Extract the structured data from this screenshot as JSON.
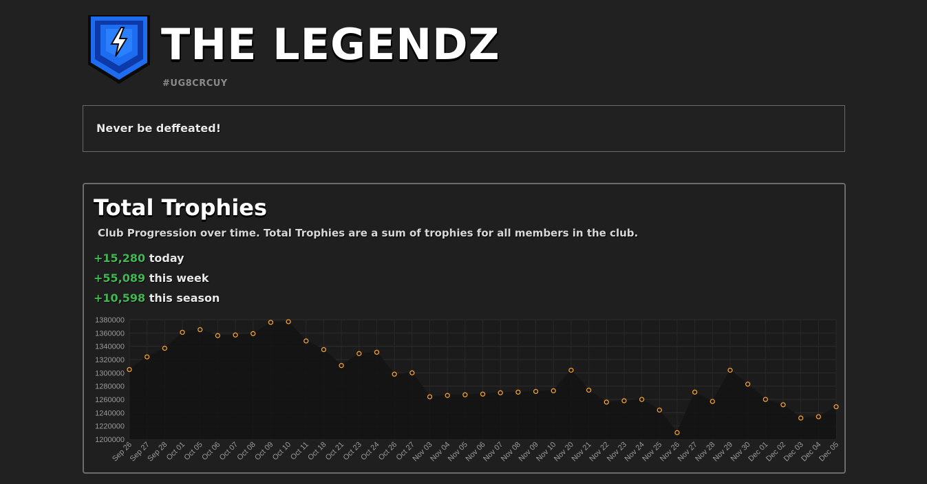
{
  "club": {
    "name": "THE LEGENDZ",
    "tag": "#UG8CRCUY",
    "description": "Never be deffeated!"
  },
  "trophies": {
    "title": "Total Trophies",
    "subtitle": "Club Progression over time. Total Trophies are a sum of trophies for all members in the club.",
    "stats": [
      {
        "value": "+15,280",
        "label": "today"
      },
      {
        "value": "+55,089",
        "label": "this week"
      },
      {
        "value": "+10,598",
        "label": "this season"
      }
    ]
  },
  "colors": {
    "accent_green": "#3fb950",
    "point": "#f0a030",
    "logo_blue": "#1e6cf0"
  },
  "chart_data": {
    "type": "line",
    "title": "",
    "xlabel": "",
    "ylabel": "",
    "ylim": [
      1200000,
      1380000
    ],
    "yticks": [
      1200000,
      1220000,
      1240000,
      1260000,
      1280000,
      1300000,
      1320000,
      1340000,
      1360000,
      1380000
    ],
    "grid": true,
    "legend": "none",
    "categories": [
      "Sep 26",
      "Sep 27",
      "Sep 28",
      "Oct 01",
      "Oct 05",
      "Oct 06",
      "Oct 07",
      "Oct 08",
      "Oct 09",
      "Oct 10",
      "Oct 11",
      "Oct 18",
      "Oct 21",
      "Oct 23",
      "Oct 24",
      "Oct 26",
      "Oct 27",
      "Nov 03",
      "Nov 04",
      "Nov 05",
      "Nov 06",
      "Nov 07",
      "Nov 08",
      "Nov 09",
      "Nov 10",
      "Nov 20",
      "Nov 21",
      "Nov 22",
      "Nov 23",
      "Nov 24",
      "Nov 25",
      "Nov 26",
      "Nov 27",
      "Nov 28",
      "Nov 29",
      "Nov 30",
      "Dec 01",
      "Dec 02",
      "Dec 03",
      "Dec 04",
      "Dec 05"
    ],
    "values": [
      1305000,
      1324000,
      1337000,
      1361000,
      1365000,
      1356000,
      1357000,
      1359000,
      1376000,
      1377000,
      1348000,
      1335000,
      1311000,
      1329000,
      1331000,
      1298000,
      1300000,
      1264000,
      1266000,
      1267000,
      1268000,
      1270000,
      1271000,
      1272000,
      1273000,
      1304000,
      1274000,
      1256000,
      1258000,
      1260000,
      1244000,
      1210000,
      1271000,
      1257000,
      1304000,
      1283000,
      1260000,
      1252000,
      1232000,
      1234000,
      1249000
    ]
  }
}
